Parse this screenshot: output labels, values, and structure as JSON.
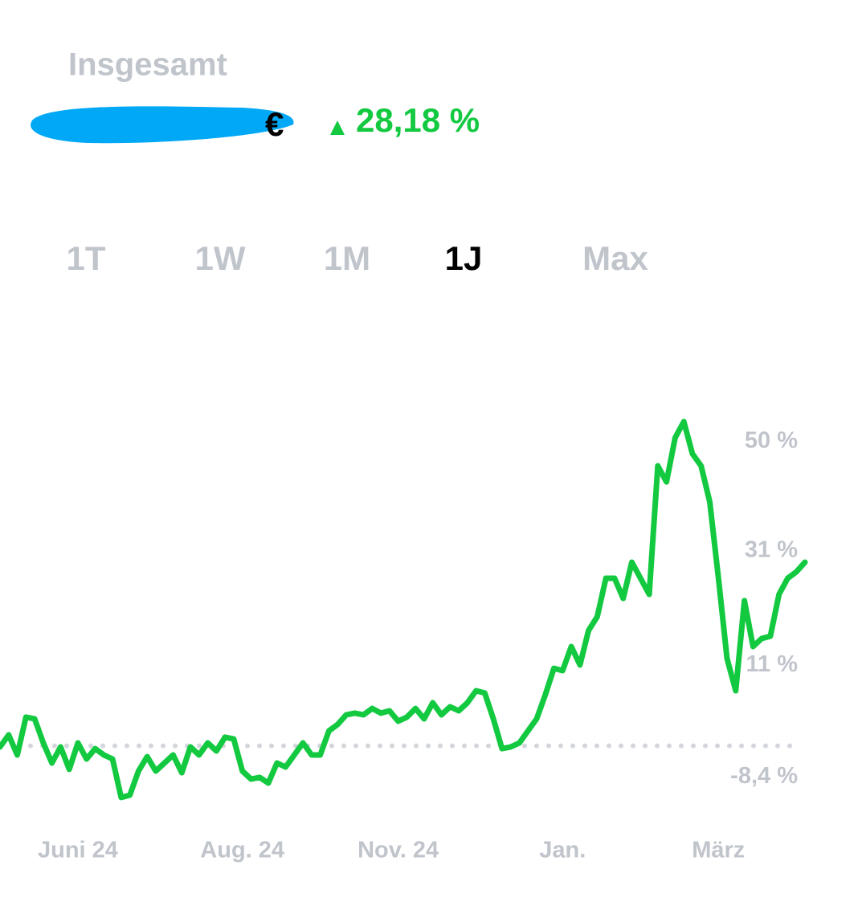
{
  "header": {
    "title": "Insgesamt",
    "change": "28,18 %"
  },
  "tabs": [
    "1T",
    "1W",
    "1M",
    "1J",
    "Max"
  ],
  "selected_tab": 3,
  "chart_data": {
    "type": "line",
    "color": "#12c940",
    "categories": [
      null,
      null,
      null,
      null,
      null,
      null,
      null,
      null,
      null,
      "Juni 24",
      null,
      null,
      null,
      null,
      null,
      null,
      null,
      null,
      null,
      null,
      null,
      null,
      null,
      null,
      null,
      null,
      null,
      null,
      "Aug. 24",
      null,
      null,
      null,
      null,
      null,
      null,
      null,
      null,
      null,
      null,
      null,
      null,
      null,
      null,
      null,
      null,
      null,
      "Nov. 24",
      null,
      null,
      null,
      null,
      null,
      null,
      null,
      null,
      null,
      null,
      null,
      null,
      null,
      null,
      null,
      null,
      null,
      null,
      "Jan.",
      null,
      null,
      null,
      null,
      null,
      null,
      null,
      null,
      null,
      null,
      null,
      null,
      null,
      null,
      null,
      null,
      null,
      "März",
      null,
      null,
      null,
      null,
      null,
      null,
      null,
      null,
      null,
      null
    ],
    "values": [
      -3.2,
      -1.1,
      -4.6,
      2.0,
      1.7,
      -2.5,
      -6,
      -3.2,
      -7.1,
      -2.5,
      -5.3,
      -3.5,
      -4.6,
      -5.3,
      -12,
      -11.6,
      -7.4,
      -4.9,
      -7.4,
      -6,
      -4.6,
      -7.7,
      -3.2,
      -4.6,
      -2.5,
      -3.9,
      -1.5,
      -1.8,
      -7.4,
      -8.8,
      -8.5,
      -9.5,
      -6,
      -6.7,
      -4.6,
      -2.5,
      -4.6,
      -4.6,
      -0.4,
      0.7,
      2.4,
      2.7,
      2.4,
      3.5,
      2.7,
      3.1,
      1.3,
      2.0,
      3.5,
      1.7,
      4.5,
      2.4,
      3.8,
      3.1,
      4.5,
      6.6,
      6.2,
      1.7,
      -3.5,
      -3.2,
      -2.5,
      -0.4,
      1.7,
      5.9,
      10.5,
      10.1,
      14.3,
      11.1,
      17.1,
      19.5,
      26.2,
      26.2,
      22.7,
      29,
      26.2,
      23.4,
      45.8,
      43,
      50.7,
      53.5,
      47.9,
      45.8,
      39.5,
      26.2,
      12.2,
      6.6,
      22.3,
      14.3,
      15.7,
      16.1,
      23.4,
      26.2,
      27.3,
      29
    ],
    "ylim": [
      -13,
      57
    ],
    "yticks": [
      {
        "value": 50,
        "label": "50 %"
      },
      {
        "value": 31,
        "label": "31 %"
      },
      {
        "value": 11,
        "label": "11 %"
      },
      {
        "value": -8.4,
        "label": "-8,4 %"
      }
    ],
    "baseline": -3
  }
}
